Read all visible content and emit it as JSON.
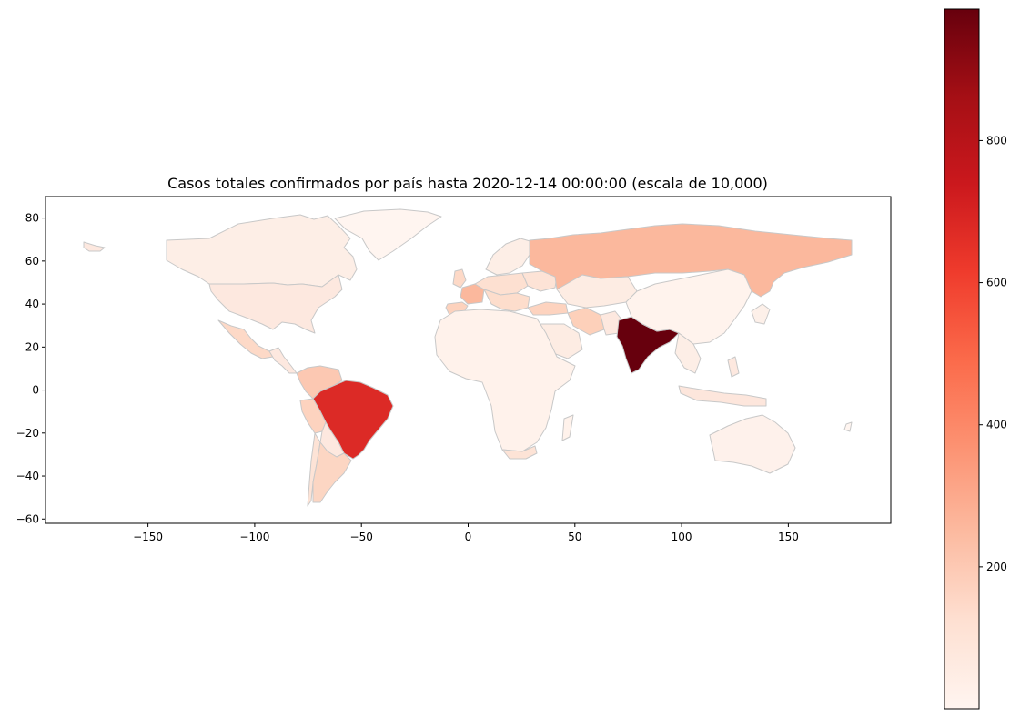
{
  "chart_data": {
    "type": "choropleth",
    "title": "Casos totales confirmados por país hasta 2020-12-14 00:00:00  (escala de 10,000)",
    "xlim": [
      -198,
      198
    ],
    "ylim": [
      -62,
      90
    ],
    "x_ticks": [
      -150,
      -100,
      -50,
      0,
      50,
      100,
      150
    ],
    "y_ticks": [
      -60,
      -40,
      -20,
      0,
      20,
      40,
      60,
      80
    ],
    "x_tick_labels": [
      "−150",
      "−100",
      "−50",
      "0",
      "50",
      "100",
      "150"
    ],
    "y_tick_labels": [
      "−60",
      "−40",
      "−20",
      "0",
      "20",
      "40",
      "60",
      "80"
    ],
    "colorbar": {
      "colormap": "Reds",
      "range": [
        0,
        985
      ],
      "ticks": [
        200,
        400,
        600,
        800
      ],
      "tick_labels": [
        "200",
        "400",
        "600",
        "800"
      ],
      "colors": [
        "#fff5f0",
        "#fee0d2",
        "#fcbba1",
        "#fc9272",
        "#fb6a4a",
        "#ef3b2c",
        "#cb181d",
        "#a50f15",
        "#67000d"
      ]
    },
    "regions": [
      {
        "name": "India",
        "value": 985
      },
      {
        "name": "Brazil",
        "value": 690
      },
      {
        "name": "Russia",
        "value": 260
      },
      {
        "name": "France",
        "value": 230
      },
      {
        "name": "Argentina",
        "value": 150
      },
      {
        "name": "Colombia",
        "value": 140
      },
      {
        "name": "United Kingdom",
        "value": 180
      },
      {
        "name": "Italy",
        "value": 180
      },
      {
        "name": "Spain",
        "value": 170
      },
      {
        "name": "Mexico",
        "value": 120
      },
      {
        "name": "Peru",
        "value": 100
      },
      {
        "name": "Iran",
        "value": 110
      },
      {
        "name": "Germany",
        "value": 130
      },
      {
        "name": "Poland",
        "value": 110
      },
      {
        "name": "Ukraine",
        "value": 90
      },
      {
        "name": "Turkey",
        "value": 120
      },
      {
        "name": "Chile",
        "value": 60
      },
      {
        "name": "Canada",
        "value": 45
      },
      {
        "name": "Greenland",
        "value": 0
      },
      {
        "name": "South Africa",
        "value": 80
      },
      {
        "name": "Indonesia",
        "value": 60
      },
      {
        "name": "Philippines",
        "value": 45
      },
      {
        "name": "Bangladesh",
        "value": 50
      },
      {
        "name": "Pakistan",
        "value": 45
      },
      {
        "name": "Iraq",
        "value": 55
      },
      {
        "name": "Saudi Arabia",
        "value": 35
      },
      {
        "name": "Kazakhstan",
        "value": 25
      },
      {
        "name": "China",
        "value": 10
      },
      {
        "name": "Australia",
        "value": 3
      }
    ],
    "base_color": "#fff5f0",
    "edge_color": "#c8c8c8"
  }
}
